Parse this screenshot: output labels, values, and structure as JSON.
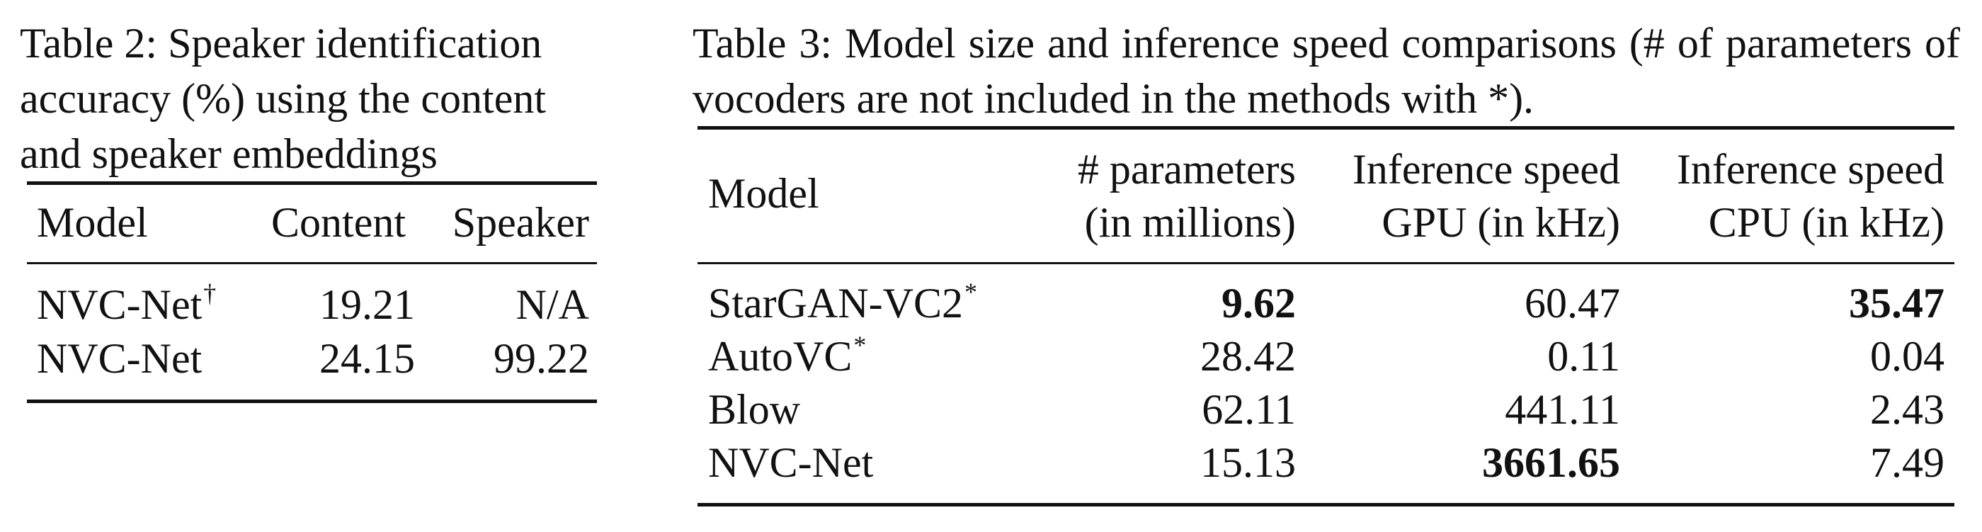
{
  "table2": {
    "caption": "Table 2: Speaker identification accuracy (%) using the content and speaker embeddings",
    "headers": [
      "Model",
      "Content",
      "Speaker"
    ],
    "rows": [
      {
        "model": "NVC-Net",
        "mark": "†",
        "content": "19.21",
        "speaker": "N/A"
      },
      {
        "model": "NVC-Net",
        "mark": "",
        "content": "24.15",
        "speaker": "99.22"
      }
    ]
  },
  "table3": {
    "caption": "Table 3: Model size and inference speed comparisons (# of parameters of vocoders are not included in the methods with *).",
    "headers": {
      "model": "Model",
      "params_line1": "# parameters",
      "params_line2": "(in millions)",
      "gpu_line1": "Inference speed",
      "gpu_line2": "GPU (in kHz)",
      "cpu_line1": "Inference speed",
      "cpu_line2": "CPU (in kHz)"
    },
    "rows": [
      {
        "model": "StarGAN-VC2",
        "mark": "*",
        "params": "9.62",
        "gpu": "60.47",
        "cpu": "35.47"
      },
      {
        "model": "AutoVC",
        "mark": "*",
        "params": "28.42",
        "gpu": "0.11",
        "cpu": "0.04"
      },
      {
        "model": "Blow",
        "mark": "",
        "params": "62.11",
        "gpu": "441.11",
        "cpu": "2.43"
      },
      {
        "model": "NVC-Net",
        "mark": "",
        "params": "15.13",
        "gpu": "3661.65",
        "cpu": "7.49"
      }
    ]
  }
}
